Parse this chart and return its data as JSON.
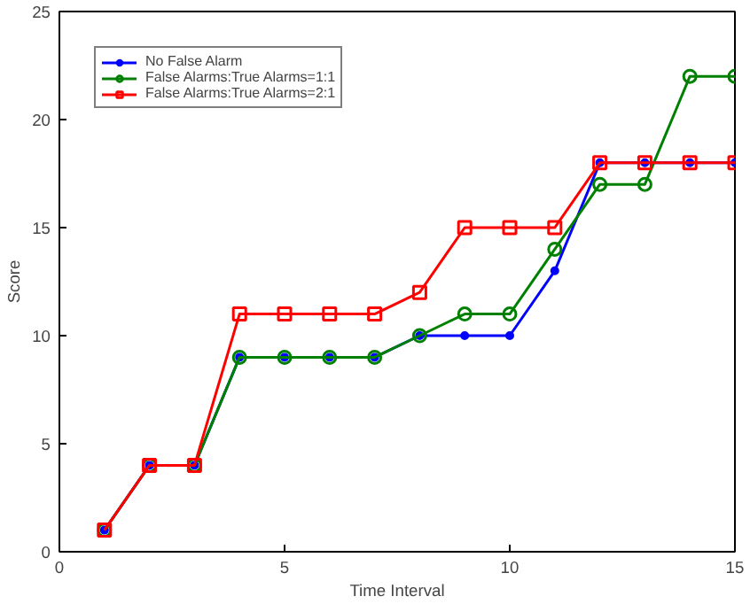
{
  "chart_data": {
    "type": "line",
    "xlabel": "Time Interval",
    "ylabel": "Score",
    "x": [
      1,
      2,
      3,
      4,
      5,
      6,
      7,
      8,
      9,
      10,
      11,
      12,
      13,
      14,
      15
    ],
    "xlim": [
      0,
      15
    ],
    "xticks": [
      0,
      5,
      10,
      15
    ],
    "ylim": [
      0,
      25
    ],
    "yticks": [
      0,
      5,
      10,
      15,
      20,
      25
    ],
    "grid": false,
    "legend": "top left",
    "series": [
      {
        "name": "No False Alarm",
        "color": "#0000ff",
        "marker": "dot",
        "values": [
          1,
          4,
          4,
          9,
          9,
          9,
          9,
          10,
          10,
          10,
          13,
          18,
          18,
          18,
          18
        ]
      },
      {
        "name": "False Alarms:True Alarms=1:1",
        "color": "#008000",
        "marker": "circle",
        "values": [
          1,
          4,
          4,
          9,
          9,
          9,
          9,
          10,
          11,
          11,
          14,
          17,
          17,
          22,
          22
        ]
      },
      {
        "name": "False Alarms:True Alarms=2:1",
        "color": "#ff0000",
        "marker": "square",
        "values": [
          1,
          4,
          4,
          11,
          11,
          11,
          11,
          12,
          15,
          15,
          15,
          18,
          18,
          18,
          18
        ]
      }
    ]
  }
}
